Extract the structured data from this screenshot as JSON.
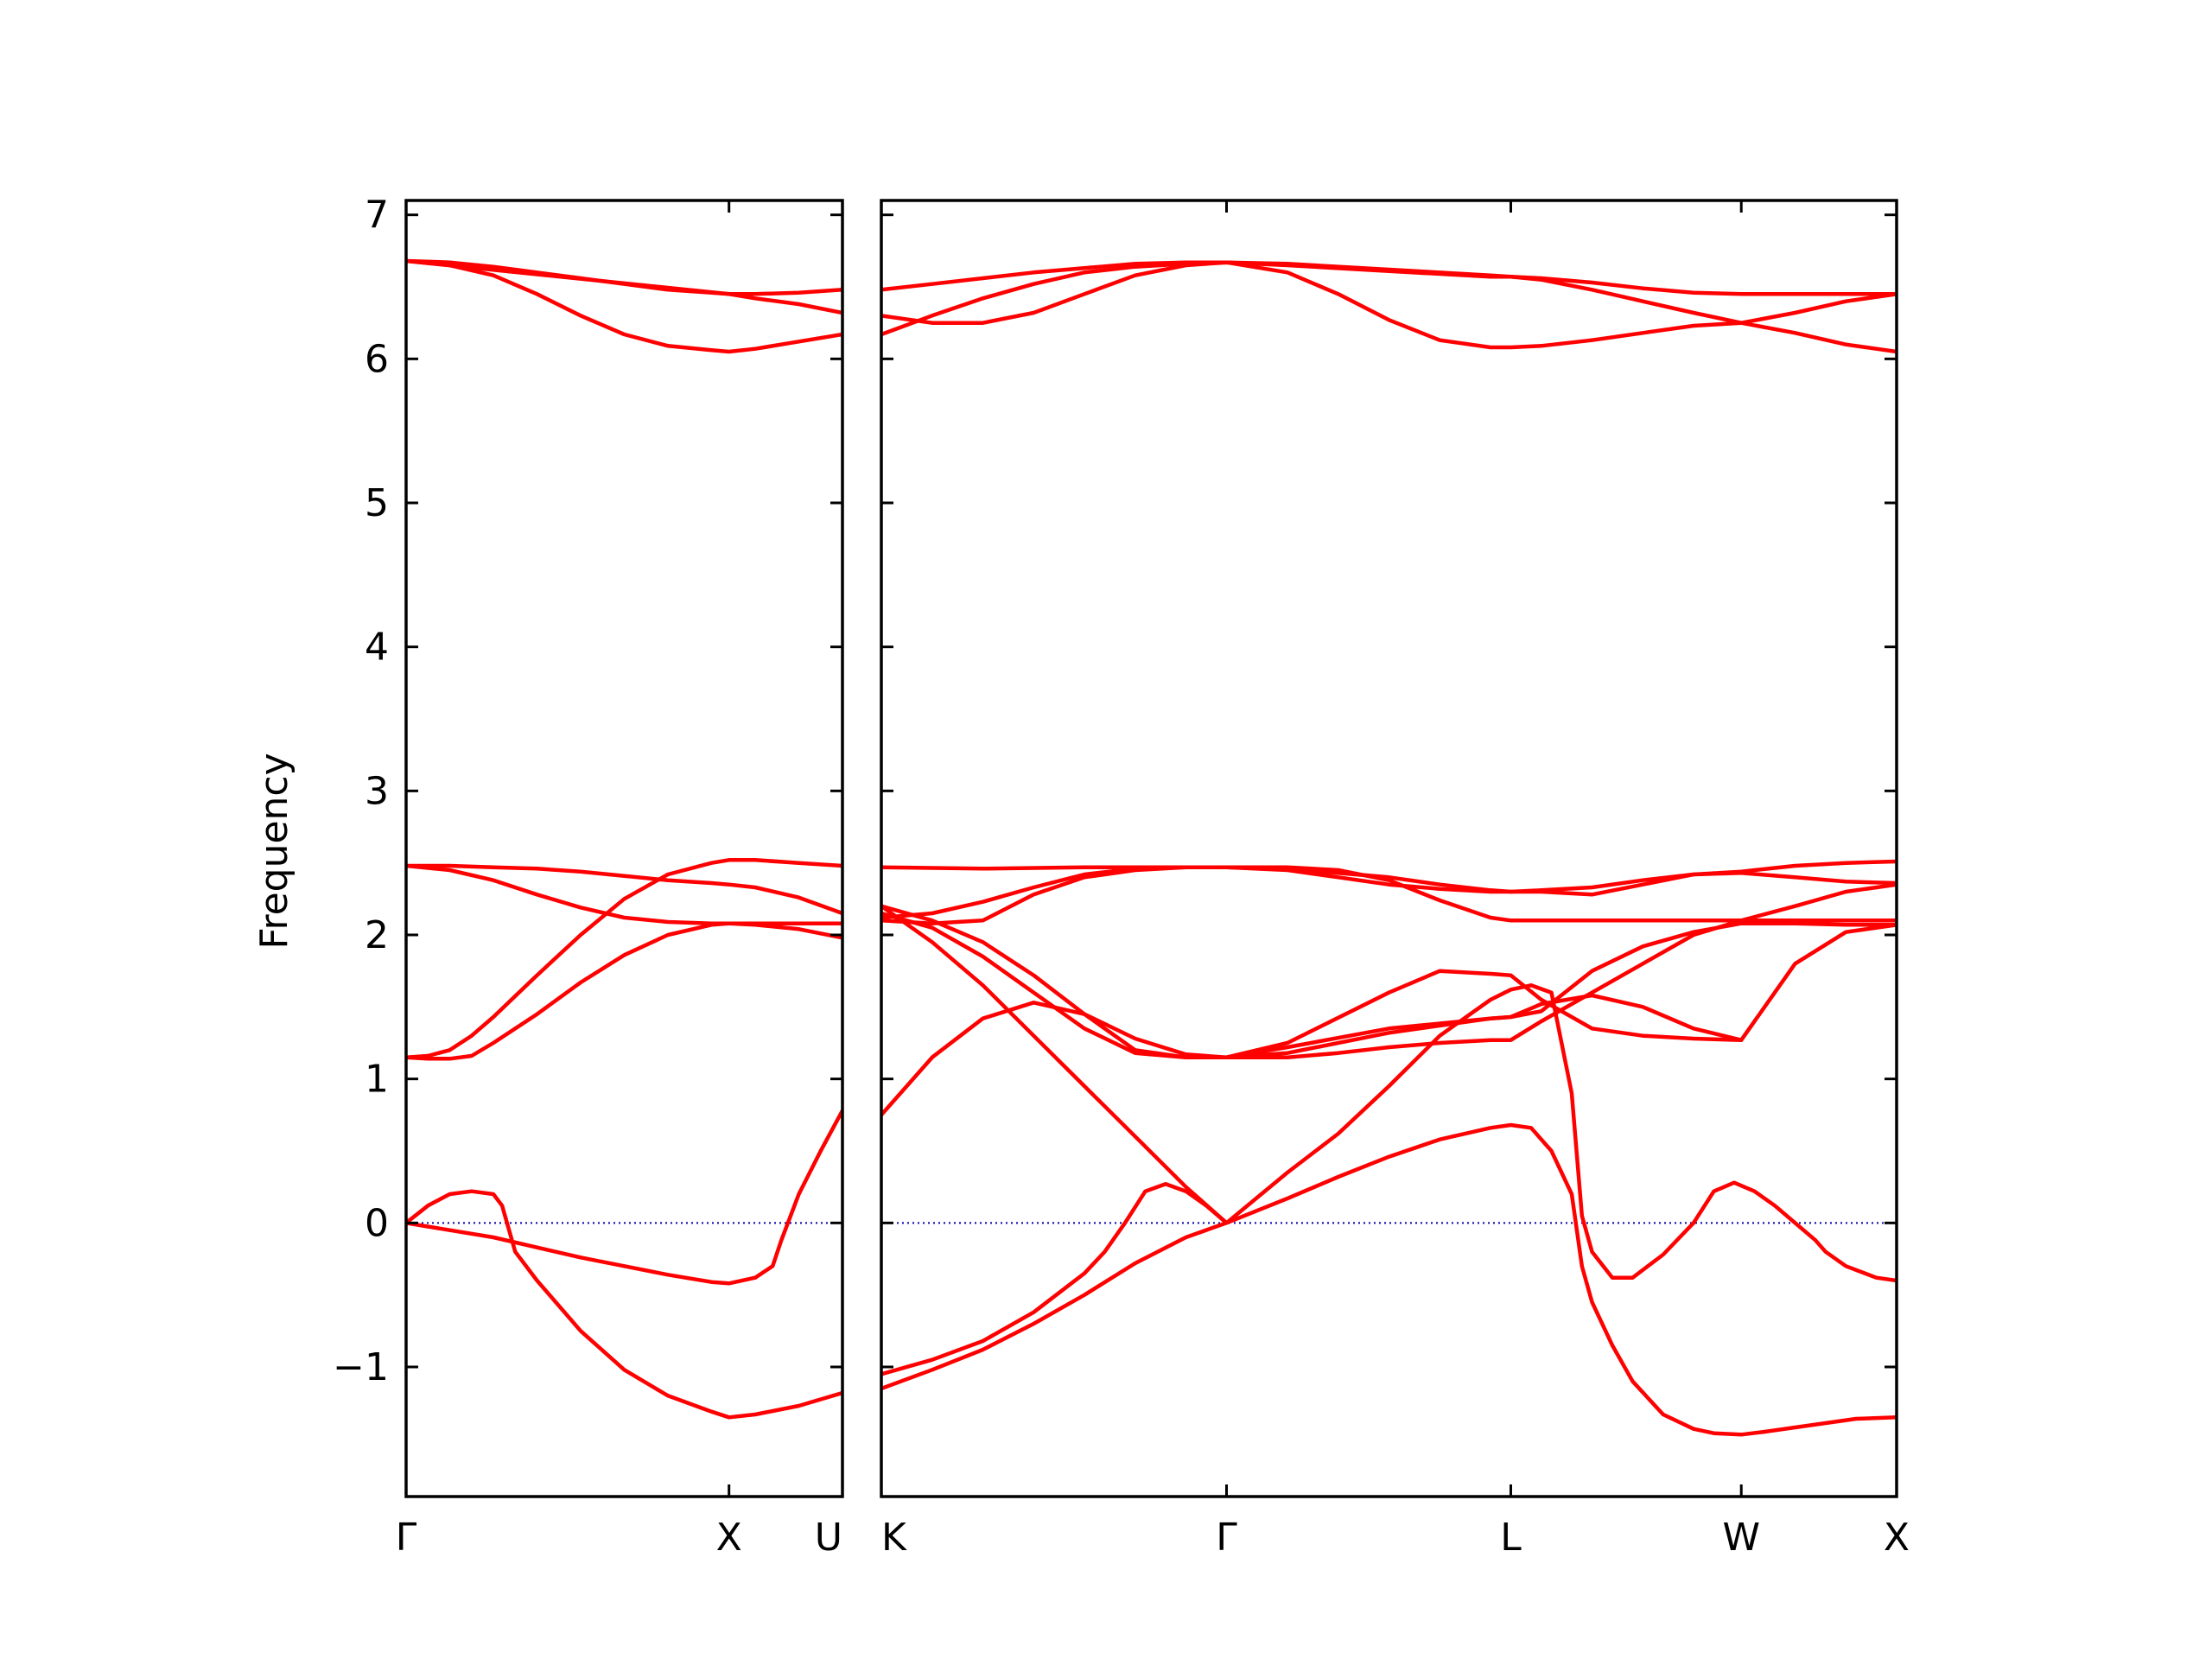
{
  "chart_data": {
    "type": "line",
    "ylabel": "Frequency",
    "ylim": [
      -1.9,
      7.1
    ],
    "yticks": [
      -1,
      0,
      1,
      2,
      3,
      4,
      5,
      6,
      7
    ],
    "ytick_labels": [
      "−1",
      "0",
      "1",
      "2",
      "3",
      "4",
      "5",
      "6",
      "7"
    ],
    "grid": false,
    "colors": {
      "bands": "#ff0000",
      "zero_line": "#0000aa",
      "axes": "#000000"
    },
    "panels": [
      {
        "xlim": [
          0,
          1
        ],
        "ticks": [
          {
            "x": 0,
            "label": "Γ"
          },
          {
            "x": 0.74,
            "label": "X"
          },
          {
            "x": 1,
            "label": "U"
          }
        ],
        "series": [
          {
            "x": [
              0,
              0.05,
              0.1,
              0.15,
              0.2,
              0.22,
              0.25,
              0.3,
              0.4,
              0.5,
              0.6,
              0.7,
              0.74,
              0.8,
              0.9,
              1.0
            ],
            "values": [
              0,
              0.12,
              0.2,
              0.22,
              0.2,
              0.12,
              -0.2,
              -0.4,
              -0.75,
              -1.02,
              -1.2,
              -1.31,
              -1.35,
              -1.33,
              -1.27,
              -1.18
            ]
          },
          {
            "x": [
              0,
              0.1,
              0.2,
              0.3,
              0.4,
              0.5,
              0.6,
              0.7,
              0.74,
              0.8,
              0.84,
              0.86,
              0.9,
              0.95,
              1.0
            ],
            "values": [
              0,
              -0.05,
              -0.1,
              -0.17,
              -0.24,
              -0.3,
              -0.36,
              -0.41,
              -0.42,
              -0.38,
              -0.3,
              -0.12,
              0.2,
              0.5,
              0.78
            ]
          },
          {
            "x": [
              0,
              0.05,
              0.1,
              0.15,
              0.2,
              0.3,
              0.4,
              0.5,
              0.6,
              0.7,
              0.74,
              0.8,
              0.9,
              1.0
            ],
            "values": [
              1.15,
              1.16,
              1.2,
              1.3,
              1.43,
              1.72,
              2.0,
              2.25,
              2.42,
              2.5,
              2.52,
              2.52,
              2.5,
              2.48
            ]
          },
          {
            "x": [
              0,
              0.05,
              0.1,
              0.15,
              0.2,
              0.3,
              0.4,
              0.5,
              0.6,
              0.7,
              0.74,
              0.8,
              0.9,
              1.0
            ],
            "values": [
              1.15,
              1.14,
              1.14,
              1.16,
              1.25,
              1.45,
              1.67,
              1.86,
              2.0,
              2.07,
              2.08,
              2.08,
              2.08,
              2.08
            ]
          },
          {
            "x": [
              0,
              0.1,
              0.2,
              0.3,
              0.4,
              0.5,
              0.6,
              0.7,
              0.74,
              0.8,
              0.9,
              1.0
            ],
            "values": [
              2.48,
              2.45,
              2.38,
              2.28,
              2.19,
              2.12,
              2.09,
              2.08,
              2.08,
              2.07,
              2.04,
              1.98
            ]
          },
          {
            "x": [
              0,
              0.1,
              0.2,
              0.3,
              0.4,
              0.5,
              0.6,
              0.7,
              0.74,
              0.8,
              0.9,
              1.0
            ],
            "values": [
              2.48,
              2.48,
              2.47,
              2.46,
              2.44,
              2.41,
              2.38,
              2.36,
              2.35,
              2.33,
              2.26,
              2.15
            ]
          },
          {
            "x": [
              0,
              0.1,
              0.2,
              0.3,
              0.4,
              0.5,
              0.6,
              0.7,
              0.74,
              0.8,
              0.9,
              1.0
            ],
            "values": [
              6.68,
              6.65,
              6.58,
              6.45,
              6.3,
              6.17,
              6.09,
              6.06,
              6.05,
              6.07,
              6.12,
              6.17
            ]
          },
          {
            "x": [
              0,
              0.1,
              0.2,
              0.3,
              0.4,
              0.5,
              0.6,
              0.7,
              0.74,
              0.8,
              0.9,
              1.0
            ],
            "values": [
              6.68,
              6.67,
              6.64,
              6.6,
              6.56,
              6.52,
              6.48,
              6.46,
              6.45,
              6.42,
              6.38,
              6.32
            ]
          },
          {
            "x": [
              0,
              0.74,
              0.8,
              0.9,
              1.0
            ],
            "values": [
              6.68,
              6.45,
              6.45,
              6.46,
              6.48
            ]
          }
        ]
      },
      {
        "xlim": [
          0,
          1
        ],
        "ticks": [
          {
            "x": 0,
            "label": "K"
          },
          {
            "x": 0.34,
            "label": "Γ"
          },
          {
            "x": 0.62,
            "label": "L"
          },
          {
            "x": 0.847,
            "label": "W"
          },
          {
            "x": 1,
            "label": "X"
          }
        ],
        "series": [
          {
            "x": [
              0,
              0.05,
              0.1,
              0.15,
              0.2,
              0.25,
              0.3,
              0.34,
              0.4,
              0.45,
              0.5,
              0.55,
              0.6,
              0.62,
              0.64,
              0.66,
              0.68,
              0.69,
              0.7,
              0.72,
              0.74,
              0.77,
              0.8,
              0.82,
              0.847,
              0.87,
              0.9,
              0.93,
              0.96,
              1.0
            ],
            "values": [
              -1.15,
              -1.02,
              -0.88,
              -0.7,
              -0.5,
              -0.28,
              -0.1,
              0,
              0.17,
              0.32,
              0.46,
              0.58,
              0.66,
              0.68,
              0.66,
              0.5,
              0.2,
              -0.3,
              -0.55,
              -0.85,
              -1.1,
              -1.33,
              -1.43,
              -1.46,
              -1.47,
              -1.45,
              -1.42,
              -1.39,
              -1.36,
              -1.35
            ]
          },
          {
            "x": [
              0,
              0.05,
              0.1,
              0.15,
              0.2,
              0.22,
              0.24,
              0.26,
              0.28,
              0.3,
              0.32,
              0.34
            ],
            "values": [
              -1.05,
              -0.95,
              -0.82,
              -0.62,
              -0.35,
              -0.2,
              0.0,
              0.22,
              0.27,
              0.22,
              0.12,
              0
            ]
          },
          {
            "x": [
              0.34,
              0.4,
              0.45,
              0.5,
              0.55,
              0.6,
              0.62,
              0.64,
              0.66,
              0.68,
              0.69,
              0.7,
              0.72,
              0.74,
              0.77,
              0.8,
              0.82,
              0.84,
              0.86,
              0.88,
              0.9,
              0.92,
              0.93,
              0.95,
              0.98,
              1.0
            ],
            "values": [
              0,
              0.35,
              0.62,
              0.95,
              1.3,
              1.55,
              1.62,
              1.65,
              1.6,
              0.9,
              0.05,
              -0.2,
              -0.38,
              -0.38,
              -0.22,
              0.0,
              0.22,
              0.28,
              0.22,
              0.12,
              0.0,
              -0.12,
              -0.2,
              -0.3,
              -0.38,
              -0.4
            ]
          },
          {
            "x": [
              0,
              0.05,
              0.1,
              0.15,
              0.2,
              0.25,
              0.3,
              0.34
            ],
            "values": [
              2.2,
              1.95,
              1.65,
              1.3,
              0.95,
              0.6,
              0.25,
              0
            ]
          },
          {
            "x": [
              0,
              0.05,
              0.1,
              0.15,
              0.2,
              0.25,
              0.3,
              0.34,
              0.4,
              0.5,
              0.6,
              0.62,
              0.65,
              0.7,
              0.75,
              0.8,
              0.847,
              0.9,
              0.95,
              1.0
            ],
            "values": [
              0.75,
              1.15,
              1.42,
              1.53,
              1.45,
              1.28,
              1.17,
              1.15,
              1.22,
              1.35,
              1.42,
              1.43,
              1.52,
              1.58,
              1.5,
              1.35,
              1.27,
              1.8,
              2.02,
              2.07
            ]
          },
          {
            "x": [
              0.34,
              0.4,
              0.5,
              0.55,
              0.6,
              0.62,
              0.65,
              0.7,
              0.75,
              0.8,
              0.847
            ],
            "values": [
              1.15,
              1.25,
              1.6,
              1.75,
              1.73,
              1.72,
              1.55,
              1.35,
              1.3,
              1.28,
              1.27
            ]
          },
          {
            "x": [
              0,
              0.05,
              0.1,
              0.15,
              0.2,
              0.25,
              0.3,
              0.34,
              0.4,
              0.45,
              0.5,
              0.55,
              0.6,
              0.62,
              0.65,
              0.7,
              0.75,
              0.8,
              0.847,
              0.9,
              0.95,
              1.0
            ],
            "values": [
              2.1,
              2.08,
              2.1,
              2.28,
              2.4,
              2.45,
              2.47,
              2.47,
              2.45,
              2.4,
              2.35,
              2.32,
              2.3,
              2.3,
              2.3,
              2.28,
              2.35,
              2.42,
              2.44,
              2.48,
              2.5,
              2.51
            ]
          },
          {
            "x": [
              0,
              0.1,
              0.2,
              0.3,
              0.34,
              0.4,
              0.5,
              0.55,
              0.6,
              0.62,
              0.65,
              0.7,
              0.75,
              0.8,
              0.847,
              0.9,
              0.95,
              1.0
            ],
            "values": [
              2.47,
              2.46,
              2.47,
              2.47,
              2.47,
              2.46,
              2.4,
              2.35,
              2.31,
              2.3,
              2.31,
              2.33,
              2.38,
              2.42,
              2.43,
              2.4,
              2.37,
              2.36
            ]
          },
          {
            "x": [
              0,
              0.05,
              0.1,
              0.15,
              0.2,
              0.25,
              0.3,
              0.34,
              0.4,
              0.45,
              0.5,
              0.55,
              0.6,
              0.62,
              0.65,
              0.7,
              0.75,
              0.8,
              0.847,
              0.9,
              0.95,
              1.0
            ],
            "values": [
              2.12,
              2.15,
              2.23,
              2.33,
              2.42,
              2.46,
              2.47,
              2.47,
              2.47,
              2.45,
              2.38,
              2.24,
              2.12,
              2.1,
              2.1,
              2.1,
              2.1,
              2.1,
              2.1,
              2.1,
              2.1,
              2.1
            ]
          },
          {
            "x": [
              0,
              0.05,
              0.1,
              0.15,
              0.2,
              0.25,
              0.3,
              0.34,
              0.4,
              0.45,
              0.5,
              0.55,
              0.6,
              0.62,
              0.65,
              0.7,
              0.75,
              0.8,
              0.847,
              0.9,
              0.95,
              1.0
            ],
            "values": [
              2.15,
              2.05,
              1.85,
              1.6,
              1.35,
              1.18,
              1.15,
              1.15,
              1.15,
              1.18,
              1.22,
              1.25,
              1.27,
              1.27,
              1.4,
              1.6,
              1.8,
              2.0,
              2.1,
              2.2,
              2.3,
              2.35
            ]
          },
          {
            "x": [
              0,
              0.05,
              0.1,
              0.15,
              0.2,
              0.25,
              0.3,
              0.34,
              0.4,
              0.5,
              0.6,
              0.62,
              0.65,
              0.7,
              0.75,
              0.8,
              0.847,
              0.9,
              0.95,
              1.0
            ],
            "values": [
              2.2,
              2.1,
              1.95,
              1.72,
              1.45,
              1.2,
              1.15,
              1.15,
              1.18,
              1.32,
              1.42,
              1.43,
              1.47,
              1.75,
              1.92,
              2.02,
              2.08,
              2.08,
              2.07,
              2.07
            ]
          },
          {
            "x": [
              0,
              0.05,
              0.1,
              0.15,
              0.2,
              0.25,
              0.3,
              0.34,
              0.4,
              0.45,
              0.5,
              0.55,
              0.6,
              0.62,
              0.65,
              0.7,
              0.75,
              0.8,
              0.847,
              0.9,
              0.95,
              1.0
            ],
            "values": [
              6.3,
              6.25,
              6.25,
              6.32,
              6.45,
              6.58,
              6.65,
              6.67,
              6.6,
              6.45,
              6.27,
              6.13,
              6.08,
              6.08,
              6.09,
              6.13,
              6.18,
              6.23,
              6.25,
              6.18,
              6.1,
              6.05
            ]
          },
          {
            "x": [
              0,
              0.05,
              0.1,
              0.15,
              0.2,
              0.25,
              0.3,
              0.34,
              0.4,
              0.5,
              0.6,
              0.62,
              0.65,
              0.7,
              0.75,
              0.8,
              0.847,
              0.9,
              0.95,
              1.0
            ],
            "values": [
              6.17,
              6.3,
              6.42,
              6.52,
              6.6,
              6.64,
              6.66,
              6.67,
              6.66,
              6.62,
              6.58,
              6.57,
              6.55,
              6.48,
              6.4,
              6.32,
              6.25,
              6.32,
              6.4,
              6.45
            ]
          },
          {
            "x": [
              0,
              0.05,
              0.1,
              0.15,
              0.2,
              0.25,
              0.3,
              0.34,
              0.4,
              0.5,
              0.6,
              0.62,
              0.65,
              0.7,
              0.75,
              0.8,
              0.847,
              0.9,
              0.95,
              1.0
            ],
            "values": [
              6.48,
              6.52,
              6.56,
              6.6,
              6.63,
              6.66,
              6.67,
              6.67,
              6.65,
              6.61,
              6.57,
              6.57,
              6.56,
              6.53,
              6.49,
              6.46,
              6.45,
              6.45,
              6.45,
              6.45
            ]
          }
        ]
      }
    ]
  }
}
